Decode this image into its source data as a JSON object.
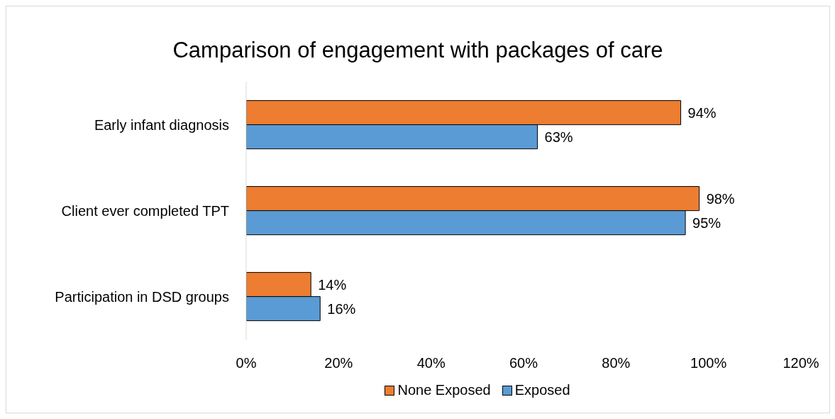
{
  "chart_data": {
    "type": "bar",
    "orientation": "horizontal",
    "title": "Camparison of engagement with packages of care",
    "categories": [
      "Early infant diagnosis",
      "Client ever completed TPT",
      "Participation in DSD groups"
    ],
    "series": [
      {
        "name": "None Exposed",
        "color": "#ed7d31",
        "values": [
          94,
          98,
          14
        ],
        "value_labels": [
          "94%",
          "98%",
          "14%"
        ]
      },
      {
        "name": "Exposed",
        "color": "#5b9bd5",
        "values": [
          63,
          95,
          16
        ],
        "value_labels": [
          "63%",
          "95%",
          "16%"
        ]
      }
    ],
    "xlim": [
      0,
      120
    ],
    "xticks": [
      {
        "value": 0,
        "label": "0%"
      },
      {
        "value": 20,
        "label": "20%"
      },
      {
        "value": 40,
        "label": "40%"
      },
      {
        "value": 60,
        "label": "60%"
      },
      {
        "value": 80,
        "label": "80%"
      },
      {
        "value": 100,
        "label": "100%"
      },
      {
        "value": 120,
        "label": "120%"
      }
    ],
    "legend": "bottom"
  }
}
